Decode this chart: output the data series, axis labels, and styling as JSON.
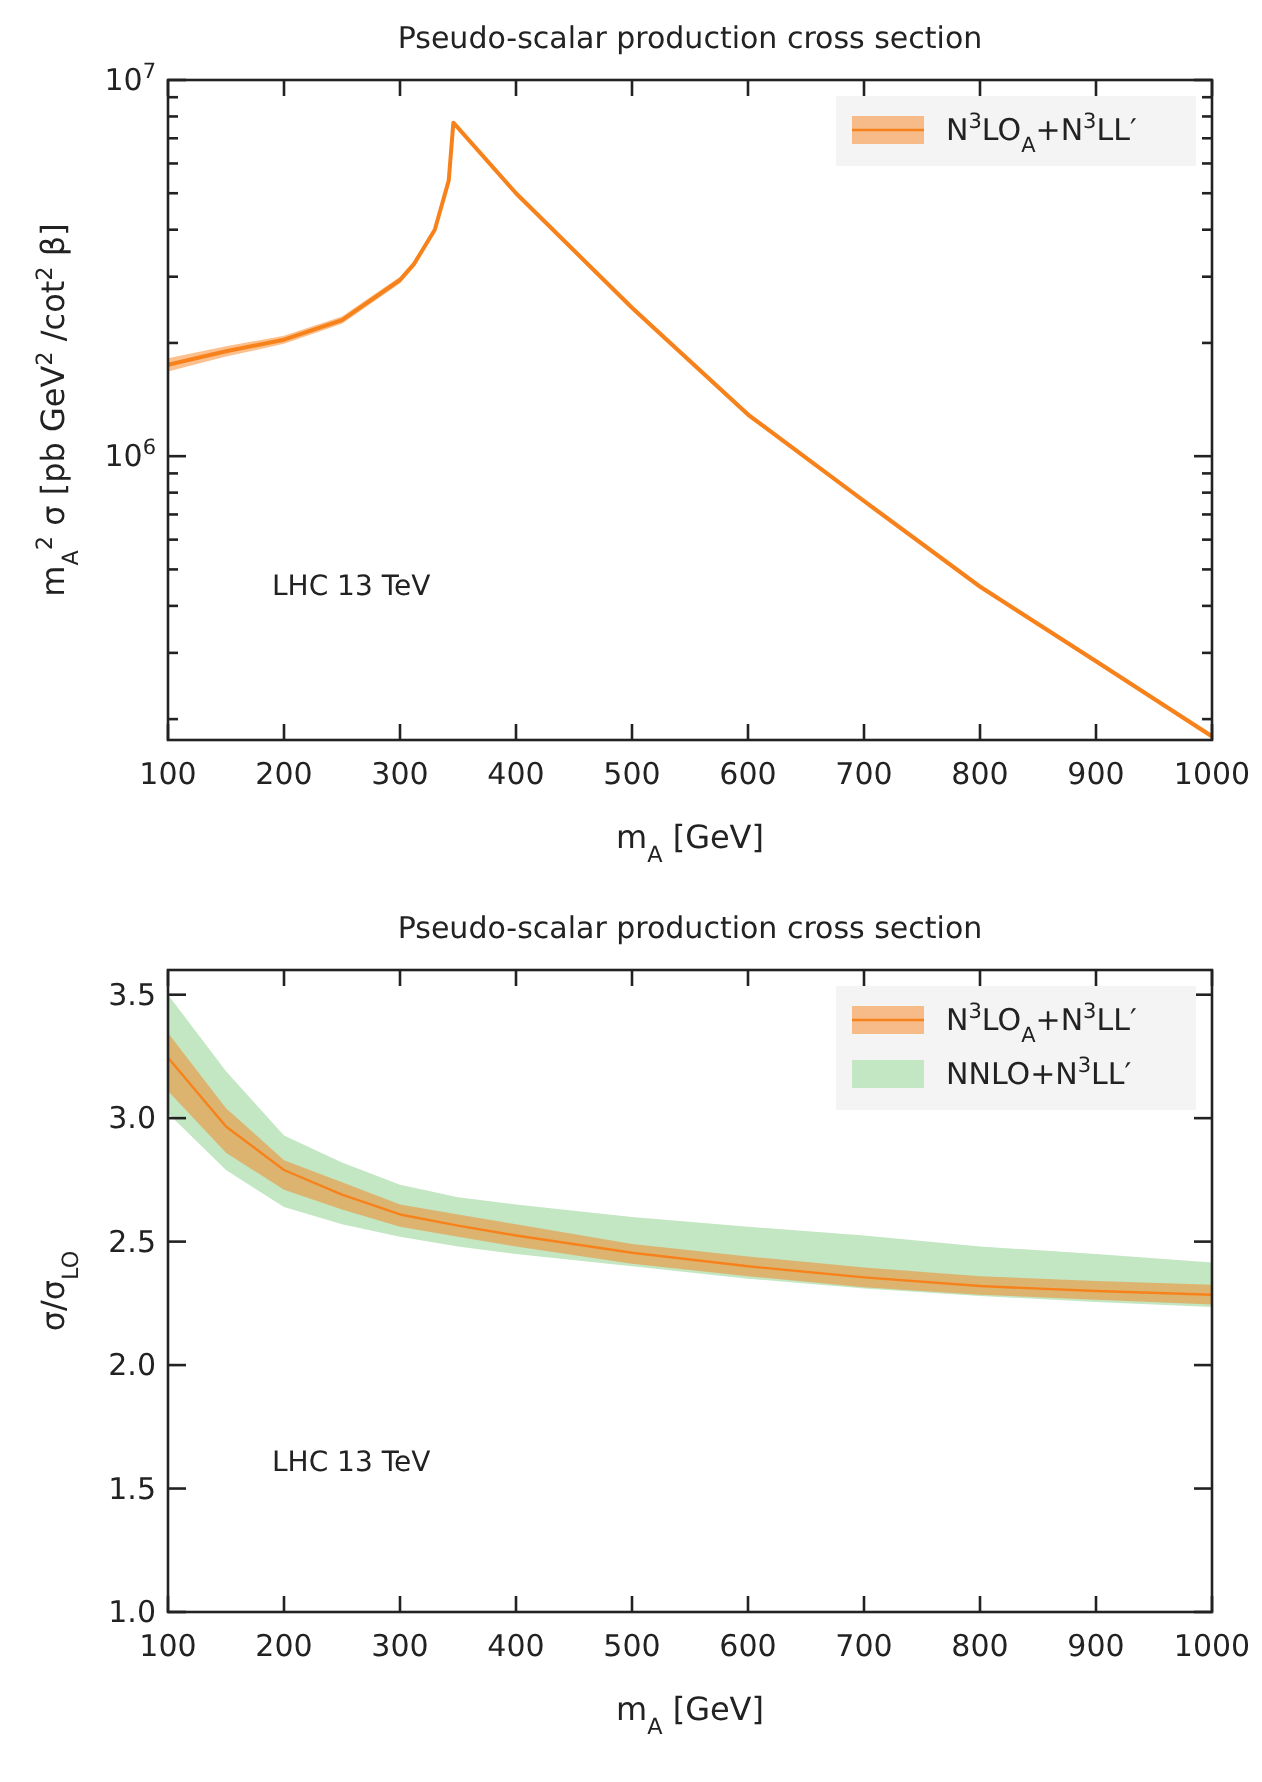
{
  "chart_data": [
    {
      "type": "line",
      "title": "Pseudo-scalar production cross section",
      "xlabel": "m$_{A}$ [GeV]",
      "ylabel": "m$_{A}$$^{2}$ σ  [pb GeV$^{2}$ /cot$^{2}$ β]",
      "log": "y",
      "grid": false,
      "legend": "top right",
      "xlim": [
        100,
        1000
      ],
      "xticks": [
        100,
        200,
        300,
        400,
        500,
        600,
        700,
        800,
        900,
        1000
      ],
      "ylim": [
        176000,
        10000000
      ],
      "yticks": [
        {
          "value": 200000,
          "label": null
        },
        {
          "value": 300000,
          "label": null
        },
        {
          "value": 400000,
          "label": null
        },
        {
          "value": 500000,
          "label": null
        },
        {
          "value": 600000,
          "label": null
        },
        {
          "value": 700000,
          "label": null
        },
        {
          "value": 800000,
          "label": null
        },
        {
          "value": 900000,
          "label": null
        },
        {
          "value": 1000000,
          "label": "10$^{6}$"
        },
        {
          "value": 2000000,
          "label": null
        },
        {
          "value": 3000000,
          "label": null
        },
        {
          "value": 4000000,
          "label": null
        },
        {
          "value": 5000000,
          "label": null
        },
        {
          "value": 6000000,
          "label": null
        },
        {
          "value": 7000000,
          "label": null
        },
        {
          "value": 8000000,
          "label": null
        },
        {
          "value": 9000000,
          "label": null
        },
        {
          "value": 10000000,
          "label": "10$^{7}$"
        }
      ],
      "annotations": [
        "LHC 13 TeV"
      ],
      "series": [
        {
          "name": "N$^{3}$LO$_{A}$+N$^{3}$LL′",
          "color": "#f7821b",
          "x": [
            100,
            150,
            200,
            250,
            300,
            312,
            330,
            342,
            346,
            400,
            500,
            600,
            700,
            800,
            900,
            1000
          ],
          "values": [
            1750000,
            1900000,
            2040000,
            2300000,
            2940000,
            3240000,
            4000000,
            5400000,
            7700000,
            5000000,
            2480000,
            1290000,
            760000,
            450000,
            285000,
            180000
          ],
          "lower": [
            1680000,
            1840000,
            1990000,
            2250000,
            2880000,
            3180000,
            3930000,
            5320000,
            7600000,
            4920000,
            2440000,
            1270000,
            748000,
            443000,
            281000,
            177000
          ],
          "upper": [
            1820000,
            1960000,
            2090000,
            2350000,
            3000000,
            3300000,
            4070000,
            5480000,
            7800000,
            5080000,
            2520000,
            1310000,
            772000,
            457000,
            289000,
            183000
          ]
        }
      ]
    },
    {
      "type": "line",
      "title": "Pseudo-scalar production cross section",
      "xlabel": "m$_{A}$ [GeV]",
      "ylabel": "σ/σ$_{LO}$",
      "grid": false,
      "legend": "top right",
      "xlim": [
        100,
        1000
      ],
      "xticks": [
        100,
        200,
        300,
        400,
        500,
        600,
        700,
        800,
        900,
        1000
      ],
      "ylim": [
        1.0,
        3.6
      ],
      "yticks": [
        {
          "value": 1.0,
          "label": "1.0"
        },
        {
          "value": 1.5,
          "label": "1.5"
        },
        {
          "value": 2.0,
          "label": "2.0"
        },
        {
          "value": 2.5,
          "label": "2.5"
        },
        {
          "value": 3.0,
          "label": "3.0"
        },
        {
          "value": 3.5,
          "label": "3.5"
        }
      ],
      "annotations": [
        "LHC 13 TeV"
      ],
      "x": [
        100,
        150,
        200,
        250,
        300,
        350,
        400,
        500,
        600,
        700,
        800,
        900,
        1000
      ],
      "series": [
        {
          "name": "NNLO+N$^{3}$LL′",
          "color": "#c3e6c3",
          "values": [
            null,
            null,
            null,
            null,
            null,
            null,
            null,
            null,
            null,
            null,
            null,
            null,
            null
          ],
          "lower": [
            3.02,
            2.79,
            2.64,
            2.57,
            2.52,
            2.48,
            2.45,
            2.4,
            2.35,
            2.31,
            2.28,
            2.255,
            2.235
          ],
          "upper": [
            3.5,
            3.19,
            2.93,
            2.82,
            2.73,
            2.68,
            2.65,
            2.6,
            2.56,
            2.525,
            2.48,
            2.45,
            2.415
          ]
        },
        {
          "name": "N$^{3}$LO$_{A}$+N$^{3}$LL′",
          "color": "#f7821b",
          "values": [
            3.245,
            2.966,
            2.79,
            2.69,
            2.61,
            2.565,
            2.525,
            2.455,
            2.4,
            2.355,
            2.32,
            2.3,
            2.285
          ],
          "lower": [
            3.11,
            2.86,
            2.71,
            2.63,
            2.56,
            2.52,
            2.48,
            2.41,
            2.36,
            2.315,
            2.285,
            2.265,
            2.245
          ],
          "upper": [
            3.345,
            3.04,
            2.83,
            2.74,
            2.65,
            2.61,
            2.57,
            2.49,
            2.44,
            2.395,
            2.36,
            2.34,
            2.325
          ]
        }
      ]
    }
  ]
}
